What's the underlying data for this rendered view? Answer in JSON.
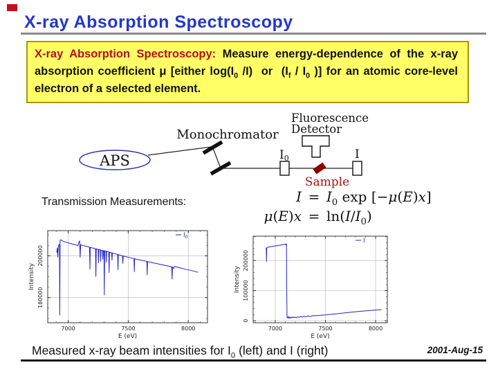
{
  "slide": {
    "title": "X-ray Absorption Spectroscopy",
    "date": "2001-Aug-15",
    "title_color": "#2437c8",
    "caption_segments": [
      {
        "t": "Measured x-ray beam intensities for I"
      },
      {
        "t": "0",
        "sub": 1
      },
      {
        "t": " (left) and I (right)"
      }
    ]
  },
  "definition_box": {
    "background": "#ffff66",
    "term_color": "#b0101c",
    "segments": [
      {
        "t": "X-ray Absorption Spectroscopy",
        "c": "#b0101c"
      },
      {
        "t": ": ",
        "c": "#b0101c"
      },
      {
        "t": "Measure energy-dependence of the x-ray absorption coefficient μ [either log(I"
      },
      {
        "t": "0",
        "sub": 1
      },
      {
        "t": " /I)  or  (I"
      },
      {
        "t": "f",
        "sub": 1
      },
      {
        "t": " / I"
      },
      {
        "t": "0",
        "sub": 1
      },
      {
        "t": " )] for an atomic core-level electron of a selected element."
      }
    ]
  },
  "diagram": {
    "source_label": "APS",
    "monochromator_label": "Monochromator",
    "fluorescence_label_line1": "Fluorescence",
    "fluorescence_label_line2": "Detector",
    "i0_main": "I",
    "i0_sub": "0",
    "i_label": "I",
    "sample_label": "Sample",
    "accent_blue": "#2233aa",
    "sample_red": "#8b0000",
    "sample_label_red": "#aa1111"
  },
  "transmission_label": "Transmission Measurements:",
  "equations": {
    "eq1": {
      "lhs": [
        {
          "t": "I",
          "i": 1
        }
      ],
      "rel": "=",
      "rhs": [
        {
          "t": "I",
          "i": 1
        },
        {
          "t": "0",
          "sub": 1
        },
        {
          "t": " exp "
        },
        {
          "t": "[−"
        },
        {
          "t": "μ",
          "i": 1
        },
        {
          "t": "("
        },
        {
          "t": "E",
          "i": 1
        },
        {
          "t": ")"
        },
        {
          "t": "x",
          "i": 1
        },
        {
          "t": "]"
        }
      ]
    },
    "eq2": {
      "lhs": [
        {
          "t": "μ",
          "i": 1
        },
        {
          "t": "("
        },
        {
          "t": "E",
          "i": 1
        },
        {
          "t": ")"
        },
        {
          "t": "x",
          "i": 1
        }
      ],
      "rel": "=",
      "rhs": [
        {
          "t": "ln("
        },
        {
          "t": "I",
          "i": 1
        },
        {
          "t": "/"
        },
        {
          "t": "I",
          "i": 1
        },
        {
          "t": "0",
          "sub": 1
        },
        {
          "t": ")"
        }
      ]
    }
  },
  "chart_data": [
    {
      "type": "line",
      "title": "",
      "xlabel": "E (eV)",
      "ylabel": "Intensity",
      "xlim": [
        6830,
        8160
      ],
      "ylim": [
        168000,
        212000
      ],
      "xticks": [
        {
          "v": 7000,
          "label": "7000"
        },
        {
          "v": 7500,
          "label": "7500"
        },
        {
          "v": 8000,
          "label": "8000"
        }
      ],
      "yticks": [
        {
          "v": 180000,
          "label": "180000"
        },
        {
          "v": 200000,
          "label": "200000"
        }
      ],
      "xminor": 100,
      "yminor": 5000,
      "grid": true,
      "legend": {
        "main": "I",
        "sub": "0",
        "position": "top-right"
      },
      "line_color": "#2323c8",
      "grid_color": "#bbbbbb",
      "series": [
        {
          "name": "I0",
          "points": [
            [
              6905,
              201500
            ],
            [
              6910,
              203800
            ],
            [
              6914,
              199200
            ],
            [
              6918,
              204600
            ],
            [
              6924,
              205200
            ],
            [
              6928,
              205600
            ],
            [
              6930,
              171500
            ],
            [
              6933,
              207400
            ],
            [
              6940,
              207600
            ],
            [
              6952,
              207100
            ],
            [
              6975,
              206600
            ],
            [
              7010,
              206000
            ],
            [
              7050,
              205400
            ],
            [
              7082,
              204900
            ],
            [
              7090,
              206700
            ],
            [
              7096,
              207000
            ],
            [
              7100,
              199200
            ],
            [
              7104,
              205300
            ],
            [
              7125,
              204900
            ],
            [
              7160,
              204400
            ],
            [
              7178,
              204100
            ],
            [
              7181,
              193500
            ],
            [
              7184,
              204000
            ],
            [
              7205,
              203700
            ],
            [
              7228,
              203400
            ],
            [
              7231,
              190000
            ],
            [
              7234,
              203300
            ],
            [
              7250,
              203050
            ],
            [
              7253,
              196500
            ],
            [
              7256,
              203000
            ],
            [
              7268,
              202800
            ],
            [
              7271,
              197200
            ],
            [
              7274,
              202700
            ],
            [
              7286,
              202500
            ],
            [
              7289,
              198200
            ],
            [
              7292,
              202450
            ],
            [
              7298,
              202400
            ],
            [
              7301,
              181200
            ],
            [
              7304,
              202350
            ],
            [
              7314,
              202150
            ],
            [
              7317,
              196800
            ],
            [
              7320,
              202100
            ],
            [
              7338,
              201800
            ],
            [
              7341,
              191800
            ],
            [
              7344,
              201700
            ],
            [
              7362,
              201400
            ],
            [
              7365,
              197800
            ],
            [
              7368,
              201300
            ],
            [
              7412,
              200600
            ],
            [
              7415,
              193200
            ],
            [
              7418,
              200500
            ],
            [
              7452,
              200000
            ],
            [
              7455,
              196300
            ],
            [
              7458,
              199900
            ],
            [
              7505,
              199200
            ],
            [
              7548,
              198650
            ],
            [
              7551,
              192200
            ],
            [
              7554,
              198550
            ],
            [
              7608,
              197850
            ],
            [
              7655,
              197300
            ],
            [
              7658,
              190800
            ],
            [
              7661,
              197200
            ],
            [
              7718,
              196500
            ],
            [
              7775,
              195800
            ],
            [
              7838,
              195000
            ],
            [
              7862,
              194700
            ],
            [
              7865,
              188700
            ],
            [
              7868,
              194600
            ],
            [
              7878,
              193900
            ],
            [
              7884,
              194900
            ],
            [
              7925,
              194300
            ],
            [
              7988,
              193400
            ],
            [
              8042,
              192700
            ],
            [
              8082,
              192100
            ]
          ]
        }
      ]
    },
    {
      "type": "line",
      "title": "",
      "xlabel": "E (eV)",
      "ylabel": "Intensity",
      "xlim": [
        6780,
        8117
      ],
      "ylim": [
        -7000,
        281000
      ],
      "xticks": [
        {
          "v": 7000,
          "label": "7000"
        },
        {
          "v": 7500,
          "label": "7500"
        },
        {
          "v": 8000,
          "label": "8000"
        }
      ],
      "yticks": [
        {
          "v": 0,
          "label": "0"
        },
        {
          "v": 100000,
          "label": "100000"
        },
        {
          "v": 200000,
          "label": "200000"
        }
      ],
      "xminor": 100,
      "yminor": 20000,
      "grid": true,
      "legend": {
        "main": "I",
        "sub": "",
        "position": "top-right"
      },
      "line_color": "#2323c8",
      "grid_color": "#bbbbbb",
      "series": [
        {
          "name": "I",
          "points": [
            [
              6908,
              237000
            ],
            [
              6911,
              241500
            ],
            [
              6913,
              196000
            ],
            [
              6916,
              242500
            ],
            [
              6926,
              243800
            ],
            [
              6942,
              245200
            ],
            [
              6968,
              246800
            ],
            [
              7000,
              248600
            ],
            [
              7038,
              250600
            ],
            [
              7076,
              252600
            ],
            [
              7098,
              253900
            ],
            [
              7105,
              254400
            ],
            [
              7108,
              250200
            ],
            [
              7110,
              254600
            ],
            [
              7112,
              253500
            ],
            [
              7115,
              90000
            ],
            [
              7118,
              12000
            ],
            [
              7124,
              9000
            ],
            [
              7130,
              13500
            ],
            [
              7136,
              8500
            ],
            [
              7143,
              12000
            ],
            [
              7150,
              8200
            ],
            [
              7158,
              11500
            ],
            [
              7166,
              9200
            ],
            [
              7176,
              12500
            ],
            [
              7186,
              9600
            ],
            [
              7198,
              12200
            ],
            [
              7210,
              9200
            ],
            [
              7224,
              13000
            ],
            [
              7238,
              11000
            ],
            [
              7252,
              13600
            ],
            [
              7268,
              12000
            ],
            [
              7286,
              14500
            ],
            [
              7306,
              13200
            ],
            [
              7326,
              15500
            ],
            [
              7350,
              14200
            ],
            [
              7376,
              16500
            ],
            [
              7408,
              16200
            ],
            [
              7448,
              17600
            ],
            [
              7498,
              19000
            ],
            [
              7556,
              21000
            ],
            [
              7618,
              23000
            ],
            [
              7686,
              25500
            ],
            [
              7756,
              28000
            ],
            [
              7828,
              30500
            ],
            [
              7898,
              32500
            ],
            [
              7976,
              34500
            ],
            [
              8058,
              36500
            ]
          ]
        }
      ]
    }
  ]
}
